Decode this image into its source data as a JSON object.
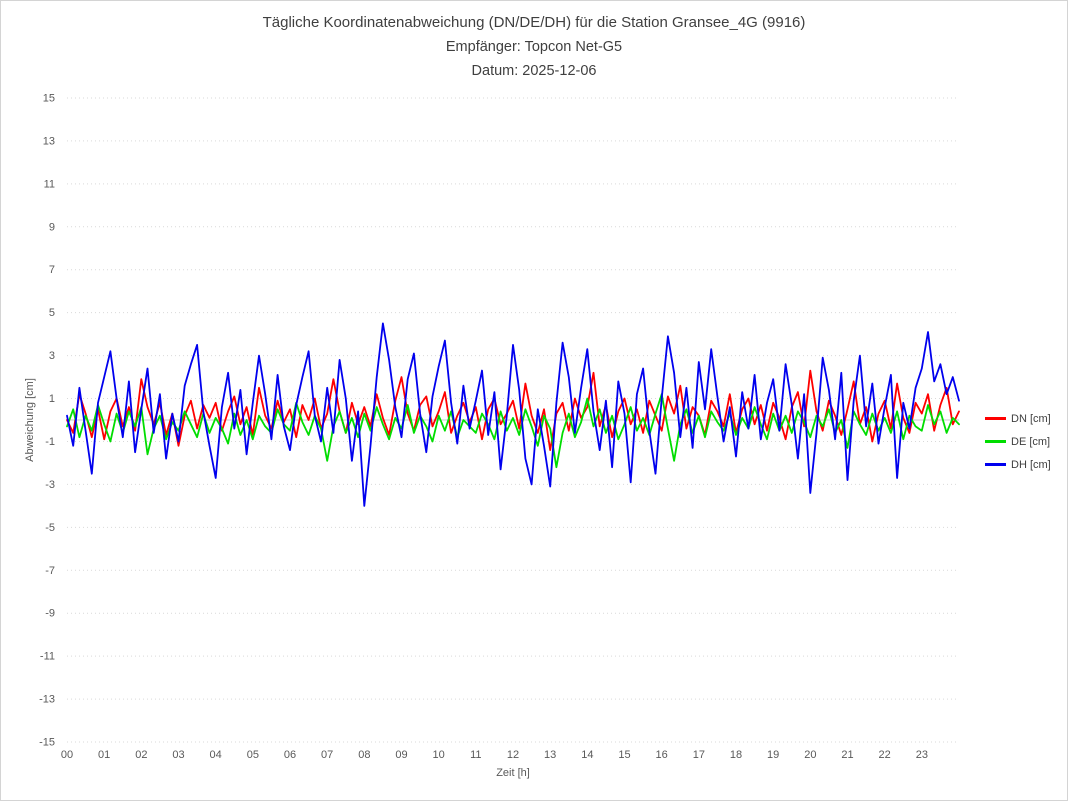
{
  "header": {
    "title": "Tägliche Koordinatenabweichung (DN/DE/DH) für die Station Gransee_4G (9916)",
    "subtitle_receiver": "Empfänger: Topcon Net-G5",
    "subtitle_date": "Datum: 2025-12-06"
  },
  "chart_data": {
    "type": "line",
    "title": "Tägliche Koordinatenabweichung (DN/DE/DH) für die Station Gransee_4G (9916)",
    "subtitle": "Empfänger: Topcon Net-G5 — Datum: 2025-12-06",
    "xlabel": "Zeit [h]",
    "ylabel": "Abweichung [cm]",
    "xlim": [
      0,
      24
    ],
    "ylim": [
      -15,
      15
    ],
    "x_interval_minutes": 10,
    "xticks": [
      "00",
      "01",
      "02",
      "03",
      "04",
      "05",
      "06",
      "07",
      "08",
      "09",
      "10",
      "11",
      "12",
      "13",
      "14",
      "15",
      "16",
      "17",
      "18",
      "19",
      "20",
      "21",
      "22",
      "23"
    ],
    "yticks": [
      15,
      13,
      11,
      9,
      7,
      5,
      3,
      1,
      -1,
      -3,
      -5,
      -7,
      -9,
      -11,
      -13,
      -15
    ],
    "grid": "horizontal-dotted",
    "zero_line": true,
    "legend_position": "right",
    "colors": {
      "grid": "#d9d9d9",
      "zero_line": "#c9c9c9",
      "tick_text": "#595959",
      "title_text": "#3f3f3f"
    },
    "series": [
      {
        "name": "DN [cm]",
        "color": "#fe0000",
        "values": [
          0.0,
          -0.6,
          1.2,
          0.3,
          -0.8,
          0.5,
          -0.9,
          0.4,
          1.0,
          -0.3,
          0.6,
          -0.5,
          1.9,
          0.6,
          -0.2,
          0.8,
          -0.7,
          0.3,
          -1.2,
          0.2,
          0.9,
          -0.4,
          0.7,
          0.1,
          0.8,
          -0.5,
          0.4,
          1.1,
          -0.2,
          0.6,
          -0.7,
          1.5,
          0.2,
          -0.4,
          0.9,
          -0.1,
          0.5,
          -0.8,
          0.7,
          0.0,
          1.0,
          -0.4,
          0.3,
          1.9,
          0.4,
          -0.6,
          0.8,
          -0.2,
          0.6,
          -0.3,
          1.2,
          0.1,
          -0.7,
          0.9,
          2.0,
          0.3,
          -0.5,
          0.7,
          1.1,
          -0.3,
          0.4,
          1.3,
          -0.6,
          0.2,
          0.8,
          -0.1,
          0.6,
          -0.9,
          0.5,
          1.0,
          -0.2,
          0.3,
          0.9,
          -0.4,
          1.7,
          0.2,
          -0.6,
          0.5,
          -1.4,
          0.3,
          0.8,
          -0.5,
          1.0,
          0.1,
          0.6,
          2.2,
          -0.3,
          0.7,
          -0.8,
          0.4,
          1.0,
          -0.2,
          0.5,
          -0.6,
          0.9,
          0.2,
          -0.5,
          1.1,
          0.3,
          1.6,
          -0.4,
          0.6,
          0.2,
          -0.7,
          0.9,
          0.4,
          -0.3,
          1.2,
          -0.6,
          0.5,
          1.0,
          -0.2,
          0.7,
          -0.5,
          0.8,
          0.1,
          -0.9,
          0.6,
          1.3,
          -0.3,
          2.3,
          0.4,
          -0.5,
          0.9,
          0.2,
          -0.7,
          0.5,
          1.8,
          -0.2,
          0.6,
          -1.0,
          0.3,
          0.9,
          -0.4,
          1.7,
          0.1,
          -0.6,
          0.8,
          0.3,
          1.2,
          -0.5,
          0.7,
          1.5,
          -0.2,
          0.4
        ]
      },
      {
        "name": "DE [cm]",
        "color": "#00dd00",
        "values": [
          -0.3,
          0.5,
          -0.8,
          0.2,
          -0.5,
          0.7,
          -0.2,
          -1.0,
          0.3,
          -0.6,
          0.4,
          -0.3,
          0.6,
          -1.6,
          -0.4,
          0.2,
          -0.9,
          -0.1,
          -0.5,
          0.4,
          -0.2,
          -0.8,
          0.3,
          -0.6,
          0.1,
          -0.4,
          -1.1,
          0.3,
          -0.7,
          0.0,
          -0.9,
          0.2,
          -0.3,
          -0.6,
          0.5,
          -0.2,
          -0.5,
          0.8,
          -0.1,
          -0.7,
          0.2,
          -0.4,
          -1.9,
          -0.3,
          0.4,
          -0.6,
          0.1,
          -0.8,
          0.3,
          -0.5,
          0.6,
          -0.2,
          -0.9,
          0.1,
          -0.4,
          0.7,
          -0.6,
          0.2,
          -0.3,
          -1.0,
          0.2,
          -0.5,
          0.4,
          -0.8,
          0.0,
          -0.3,
          -0.6,
          0.3,
          -0.2,
          -0.9,
          0.4,
          -0.5,
          0.1,
          -0.7,
          0.5,
          -0.3,
          -1.2,
          0.2,
          -0.4,
          -2.2,
          -0.6,
          0.3,
          -0.8,
          -0.1,
          1.0,
          -0.3,
          0.5,
          -0.6,
          0.2,
          -0.9,
          -0.2,
          0.6,
          -0.5,
          0.1,
          -0.7,
          0.3,
          1.2,
          -0.4,
          -1.9,
          -0.2,
          0.5,
          -0.6,
          0.2,
          -0.8,
          0.4,
          -0.1,
          -0.5,
          0.3,
          -0.7,
          0.1,
          -0.4,
          0.6,
          -0.2,
          -0.9,
          0.3,
          -0.5,
          0.2,
          -0.6,
          0.4,
          -0.1,
          -0.8,
          0.2,
          -0.3,
          0.5,
          -0.6,
          0.0,
          -1.3,
          0.4,
          -0.2,
          -0.7,
          0.3,
          -0.5,
          0.1,
          -0.6,
          0.4,
          -0.9,
          0.2,
          -0.3,
          -0.5,
          0.7,
          -0.2,
          0.4,
          -0.6,
          0.1,
          -0.2
        ]
      },
      {
        "name": "DH [cm]",
        "color": "#0000ee",
        "values": [
          0.2,
          -1.2,
          1.5,
          -0.5,
          -2.5,
          0.8,
          2.0,
          3.2,
          1.0,
          -0.8,
          1.8,
          -1.5,
          0.5,
          2.4,
          -0.6,
          1.2,
          -1.8,
          0.3,
          -1.0,
          1.6,
          2.6,
          3.5,
          0.4,
          -1.2,
          -2.7,
          0.6,
          2.2,
          -0.4,
          1.4,
          -1.6,
          0.8,
          3.0,
          1.2,
          -0.9,
          2.1,
          -0.3,
          -1.4,
          0.7,
          2.0,
          3.2,
          0.2,
          -1.0,
          1.5,
          -0.6,
          2.8,
          1.0,
          -1.9,
          0.4,
          -4.0,
          -1.2,
          2.0,
          4.5,
          2.8,
          0.6,
          -0.8,
          1.9,
          3.1,
          0.3,
          -1.5,
          1.1,
          2.5,
          3.7,
          0.8,
          -1.1,
          1.6,
          -0.4,
          0.9,
          2.3,
          -0.7,
          1.3,
          -2.3,
          0.2,
          3.5,
          1.4,
          -1.8,
          -3.0,
          0.5,
          -1.2,
          -3.1,
          0.8,
          3.6,
          2.0,
          -0.6,
          1.5,
          3.3,
          0.4,
          -1.4,
          0.9,
          -2.2,
          1.8,
          0.3,
          -2.9,
          1.2,
          2.4,
          -0.5,
          -2.5,
          1.0,
          3.9,
          2.2,
          -0.8,
          1.5,
          -1.3,
          2.7,
          0.5,
          3.3,
          1.1,
          -1.0,
          0.6,
          -1.7,
          1.3,
          -0.4,
          2.1,
          -0.9,
          0.8,
          1.9,
          -0.5,
          2.6,
          0.7,
          -1.8,
          1.2,
          -3.4,
          -0.6,
          2.9,
          1.4,
          -0.9,
          2.2,
          -2.8,
          0.9,
          3.0,
          -0.3,
          1.7,
          -1.1,
          0.6,
          2.1,
          -2.7,
          0.8,
          -0.4,
          1.5,
          2.4,
          4.1,
          1.8,
          2.6,
          1.2,
          2.0,
          0.9
        ]
      }
    ]
  }
}
